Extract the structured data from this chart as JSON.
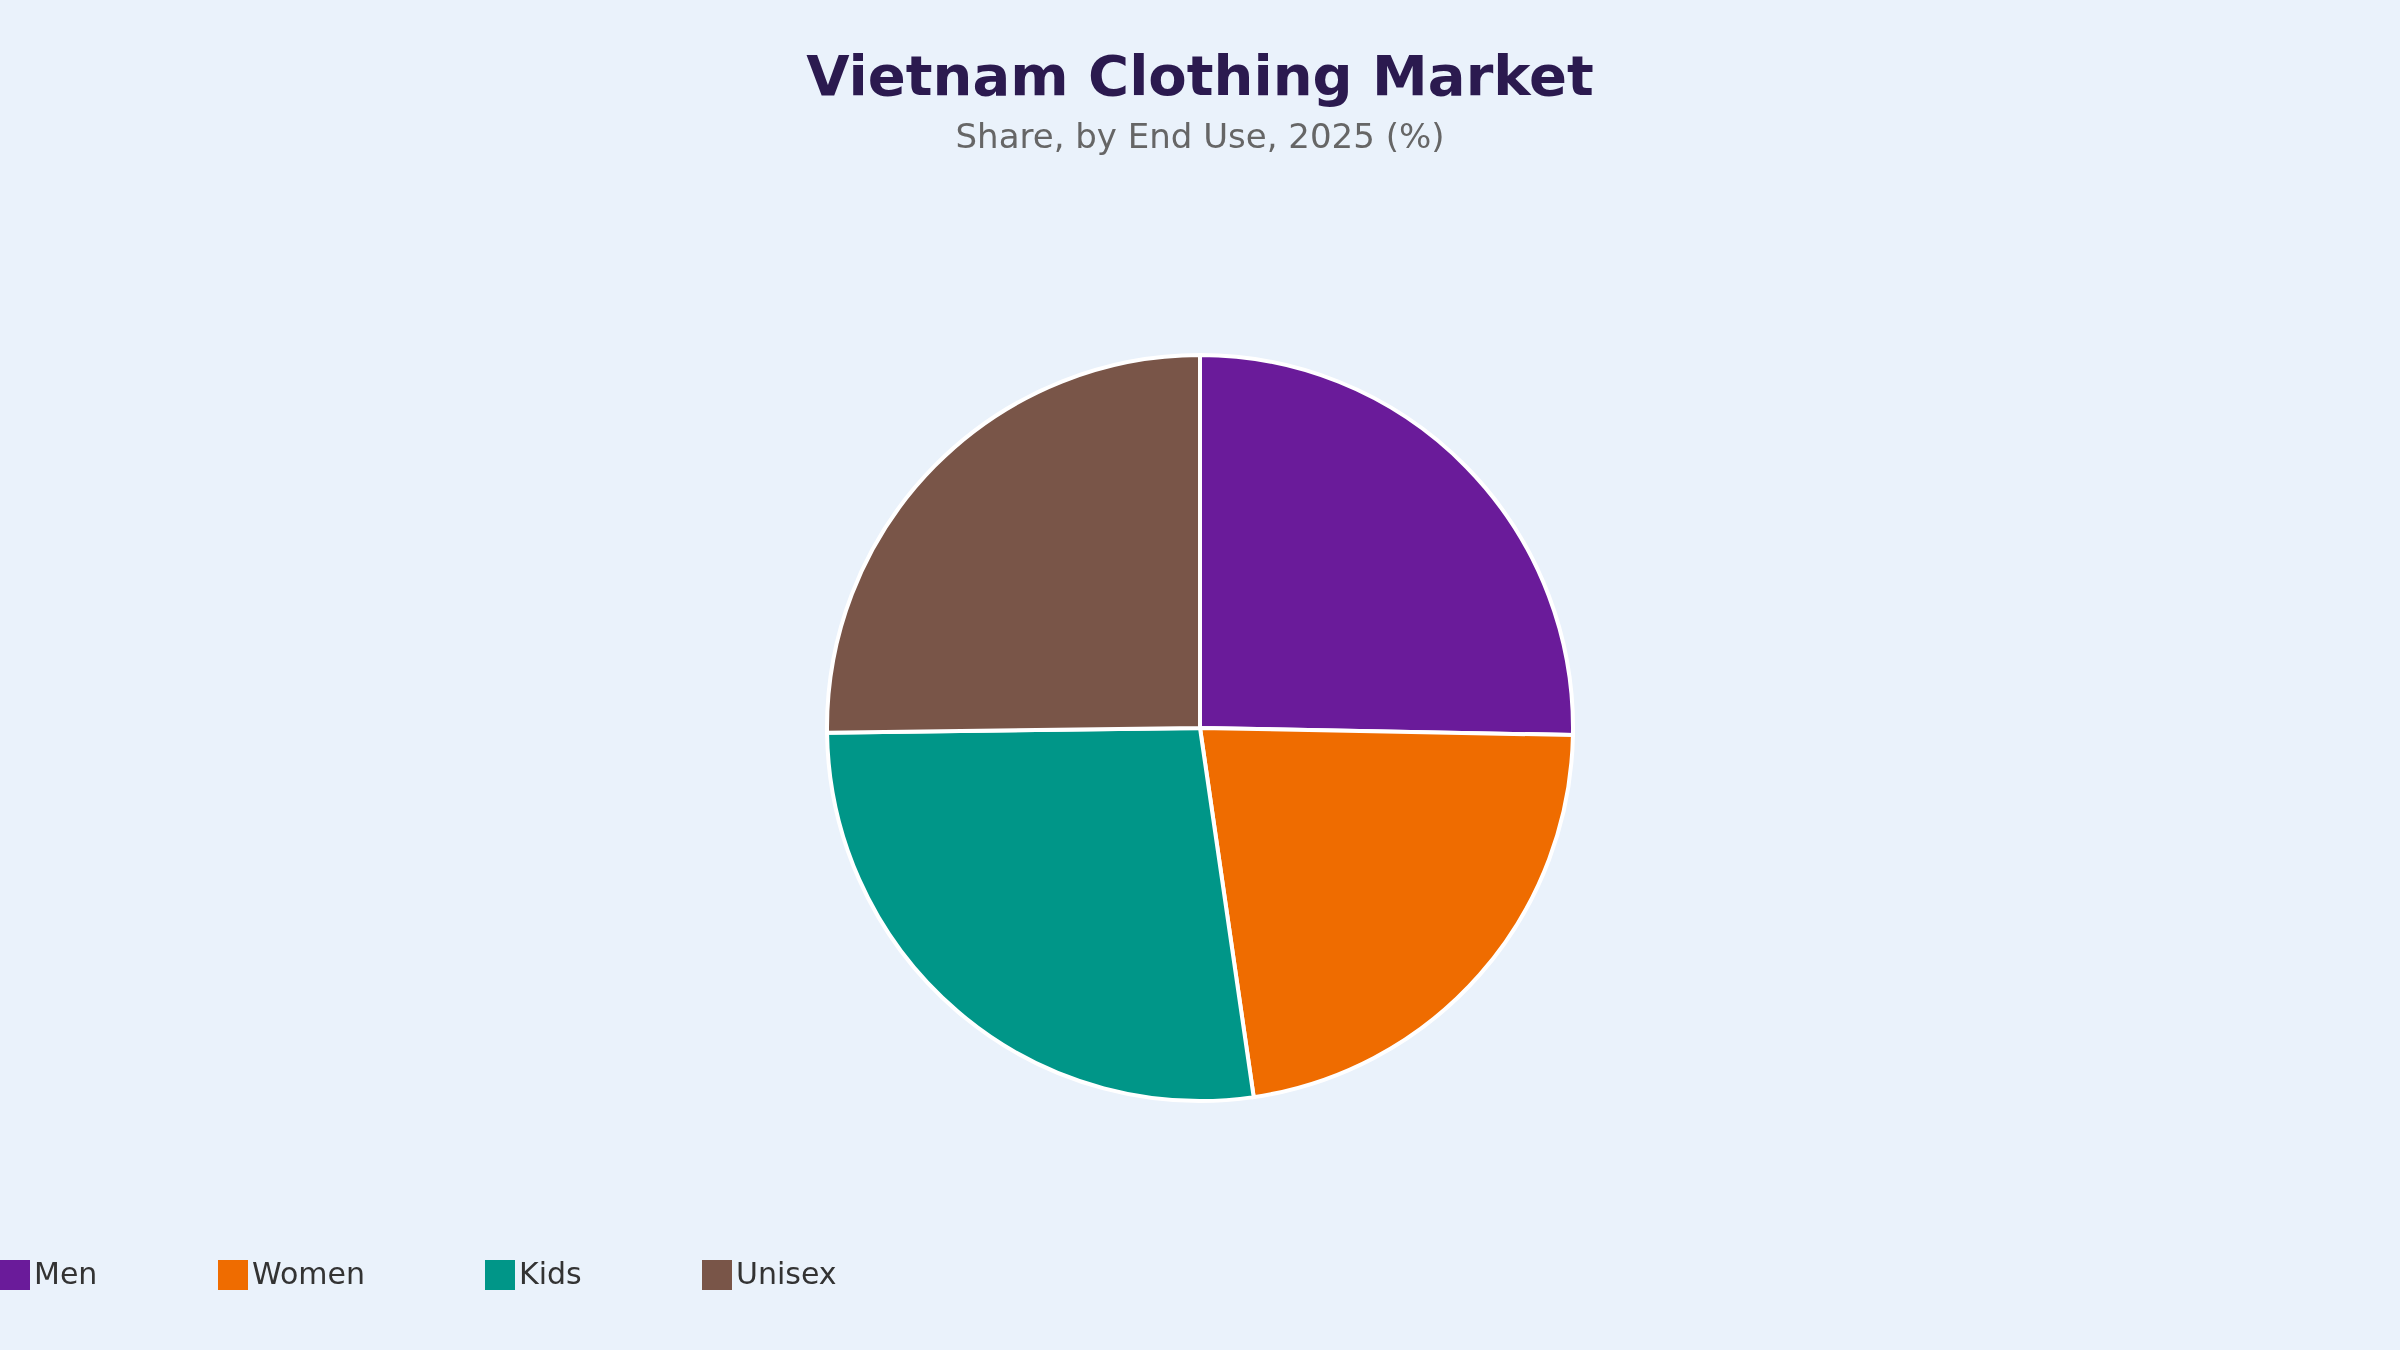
{
  "chart_data": {
    "type": "pie",
    "title": "Vietnam Clothing Market",
    "subtitle": "Share, by End Use, 2025 (%)",
    "categories": [
      "Men",
      "Women",
      "Kids",
      "Unisex"
    ],
    "values": [
      25.3,
      22.4,
      27.1,
      25.2
    ],
    "colors": [
      "#6a1b9a",
      "#ef6c00",
      "#009688",
      "#795548"
    ],
    "legend": "bottom"
  }
}
